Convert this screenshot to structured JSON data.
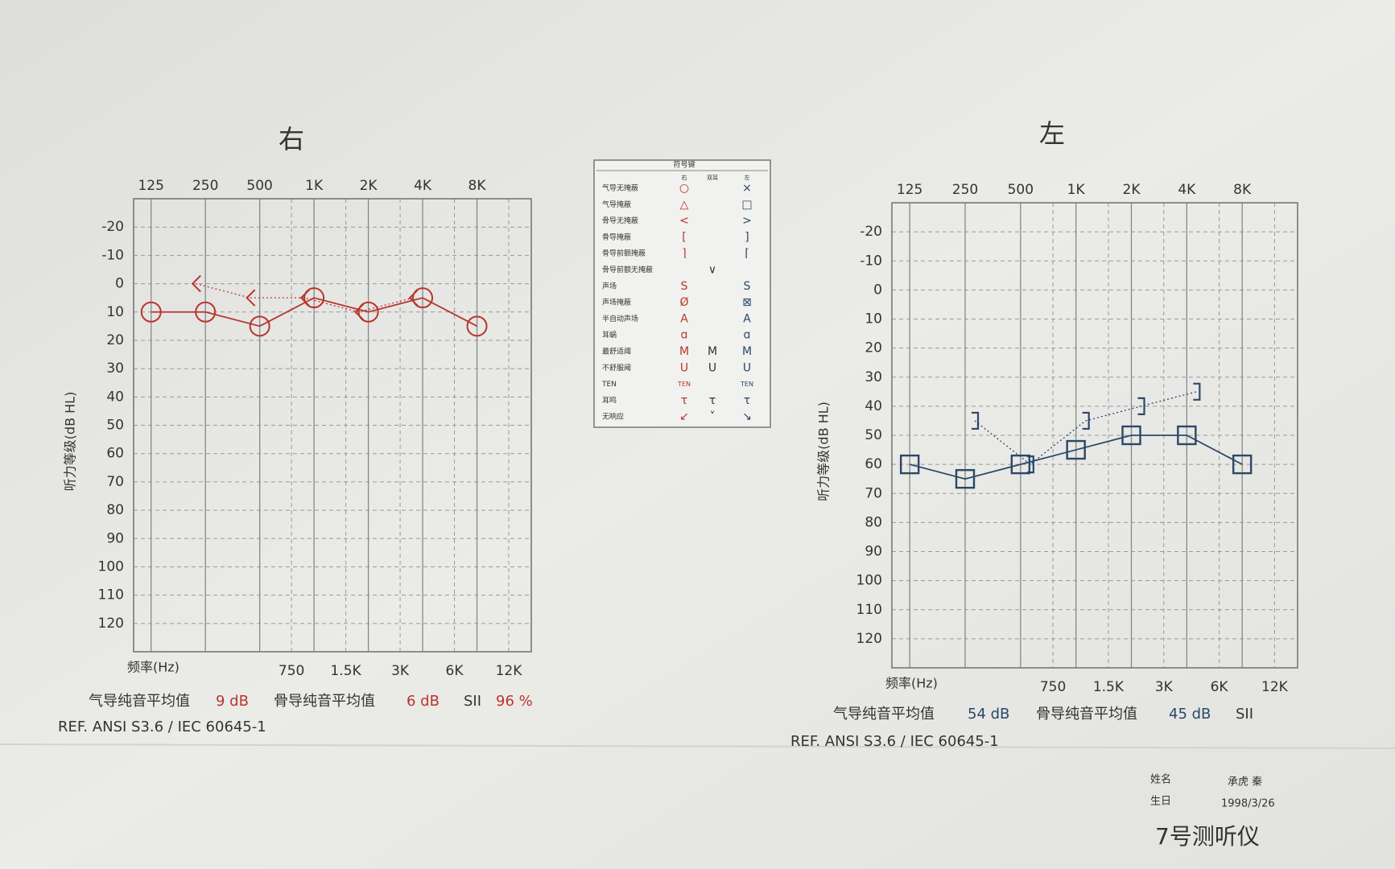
{
  "chart_data": [
    {
      "type": "line",
      "title": "右",
      "y_label": "听力等级(dB HL)",
      "x_label": "频率(Hz)",
      "log_x": true,
      "y_inverted": true,
      "grid": true,
      "xlim": [
        100,
        16000
      ],
      "ylim": [
        -30,
        130
      ],
      "xticks": [
        {
          "value": 125,
          "label": "125"
        },
        {
          "value": 250,
          "label": "250"
        },
        {
          "value": 500,
          "label": "500"
        },
        {
          "value": 1000,
          "label": "1K"
        },
        {
          "value": 2000,
          "label": "2K"
        },
        {
          "value": 4000,
          "label": "4K"
        },
        {
          "value": 8000,
          "label": "8K"
        }
      ],
      "xticks_bottom": [
        {
          "value": 750,
          "label": "750"
        },
        {
          "value": 1500,
          "label": "1.5K"
        },
        {
          "value": 3000,
          "label": "3K"
        },
        {
          "value": 6000,
          "label": "6K"
        },
        {
          "value": 12000,
          "label": "12K"
        }
      ],
      "yticks": [
        -20,
        -10,
        0,
        10,
        20,
        30,
        40,
        50,
        60,
        70,
        80,
        90,
        100,
        110,
        120
      ],
      "series": [
        {
          "name": "气导无掩蔽",
          "color": "#b8352d",
          "marker": "circle",
          "line": "solid",
          "x": [
            125,
            250,
            500,
            1000,
            2000,
            4000,
            8000
          ],
          "values": [
            10,
            10,
            15,
            5,
            10,
            5,
            15
          ]
        },
        {
          "name": "骨导无掩蔽",
          "color": "#b8352d",
          "marker": "lt",
          "line": "dotted",
          "x": [
            250,
            500,
            1000,
            2000,
            4000
          ],
          "values": [
            0,
            5,
            5,
            10,
            5
          ]
        }
      ],
      "averages": [
        {
          "label": "气导纯音平均值",
          "value": "9 dB"
        },
        {
          "label": "骨导纯音平均值",
          "value": "6 dB"
        },
        {
          "label": "SII",
          "value": "96 %"
        }
      ],
      "reference": "REF. ANSI S3.6 / IEC 60645-1"
    },
    {
      "type": "line",
      "title": "左",
      "y_label": "听力等级(dB HL)",
      "x_label": "频率(Hz)",
      "log_x": true,
      "y_inverted": true,
      "grid": true,
      "xlim": [
        100,
        16000
      ],
      "ylim": [
        -30,
        130
      ],
      "xticks": [
        {
          "value": 125,
          "label": "125"
        },
        {
          "value": 250,
          "label": "250"
        },
        {
          "value": 500,
          "label": "500"
        },
        {
          "value": 1000,
          "label": "1K"
        },
        {
          "value": 2000,
          "label": "2K"
        },
        {
          "value": 4000,
          "label": "4K"
        },
        {
          "value": 8000,
          "label": "8K"
        }
      ],
      "xticks_bottom": [
        {
          "value": 750,
          "label": "750"
        },
        {
          "value": 1500,
          "label": "1.5K"
        },
        {
          "value": 3000,
          "label": "3K"
        },
        {
          "value": 6000,
          "label": "6K"
        },
        {
          "value": 12000,
          "label": "12K"
        }
      ],
      "yticks": [
        -20,
        -10,
        0,
        10,
        20,
        30,
        40,
        50,
        60,
        70,
        80,
        90,
        100,
        110,
        120
      ],
      "series": [
        {
          "name": "气导掩蔽",
          "color": "#2b4868",
          "marker": "square",
          "line": "solid",
          "x": [
            125,
            250,
            500,
            1000,
            2000,
            4000,
            8000
          ],
          "values": [
            60,
            65,
            60,
            55,
            50,
            50,
            60
          ]
        },
        {
          "name": "骨导掩蔽",
          "color": "#2b4868",
          "marker": "rbracket",
          "line": "dotted",
          "x": [
            250,
            500,
            1000,
            2000,
            4000
          ],
          "values": [
            45,
            60,
            45,
            40,
            35
          ]
        }
      ],
      "averages": [
        {
          "label": "气导纯音平均值",
          "value": "54 dB"
        },
        {
          "label": "骨导纯音平均值",
          "value": "45 dB"
        },
        {
          "label": "SII",
          "value": null
        }
      ],
      "reference": "REF. ANSI S3.6 / IEC 60645-1"
    }
  ],
  "symbol_key": {
    "title": "符号键",
    "headers": [
      "右",
      "双耳",
      "左"
    ],
    "rows": [
      [
        "气导无掩蔽",
        "○",
        null,
        "×"
      ],
      [
        "气导掩蔽",
        "△",
        null,
        "□"
      ],
      [
        "骨导无掩蔽",
        "<",
        null,
        ">"
      ],
      [
        "骨导掩蔽",
        "[",
        null,
        "]"
      ],
      [
        "骨导前额掩蔽",
        "⌉",
        null,
        "⌈"
      ],
      [
        "骨导前额无掩蔽",
        null,
        "∨",
        null
      ],
      [
        "声场",
        "S",
        null,
        "S"
      ],
      [
        "声场掩蔽",
        "Ø",
        null,
        "⊠"
      ],
      [
        "半自动声场",
        "A",
        null,
        "A"
      ],
      [
        "耳蜗",
        "ɑ",
        null,
        "ɑ"
      ],
      [
        "最舒适阈",
        "M",
        "M",
        "M"
      ],
      [
        "不舒服阈",
        "U",
        "U",
        "U"
      ],
      [
        "TEN",
        "TEN",
        null,
        "TEN"
      ],
      [
        "耳鸣",
        "τ",
        "τ",
        "τ"
      ],
      [
        "无响应",
        "↙",
        "˅",
        "↘"
      ]
    ]
  },
  "patient": {
    "name_label": "姓名",
    "name": "承虎 秦",
    "birth_label": "生日",
    "birth": "1998/3/26"
  },
  "device": "7号测听仪"
}
